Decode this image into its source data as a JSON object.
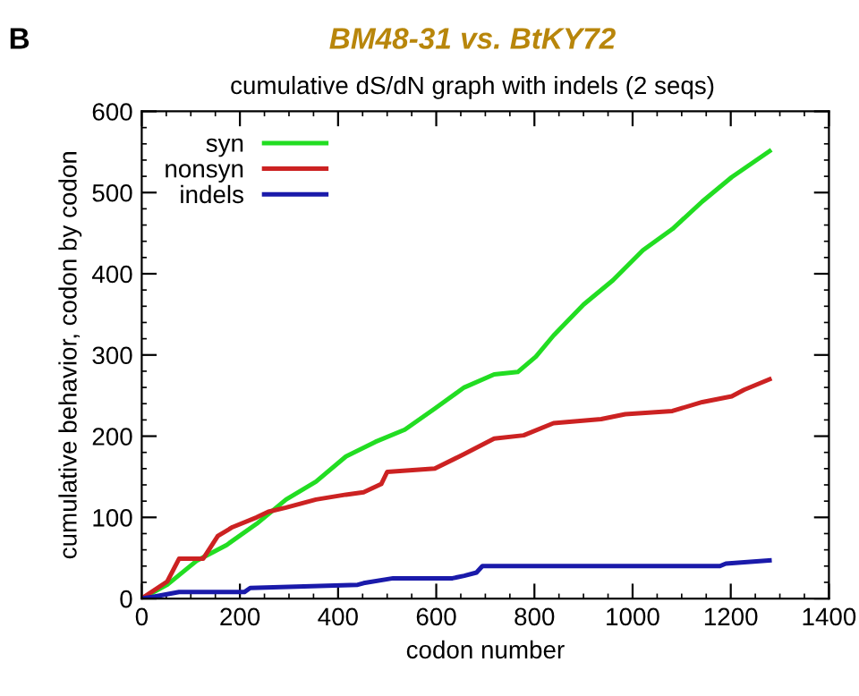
{
  "chart_data": {
    "type": "line",
    "title": "BM48-31 vs. BtKY72",
    "subtitle": "cumulative dS/dN graph with indels (2 seqs)",
    "xlabel": "codon number",
    "ylabel": "cumulative behavior, codon by codon",
    "annotations": [
      "B"
    ],
    "xlim": [
      0,
      1400
    ],
    "xticks": [
      0,
      200,
      400,
      600,
      800,
      1000,
      1200,
      1400
    ],
    "ylim": [
      0,
      600
    ],
    "yticks": [
      0,
      100,
      200,
      300,
      400,
      500,
      600
    ],
    "grid": false,
    "legend": "top left",
    "series": [
      {
        "name": "syn",
        "color": "#22dd22",
        "x": [
          0,
          52,
          113,
          173,
          234,
          294,
          355,
          416,
          476,
          536,
          597,
          657,
          718,
          766,
          803,
          839,
          900,
          960,
          1021,
          1081,
          1142,
          1202,
          1279
        ],
        "values": [
          0,
          17,
          47,
          66,
          92,
          122,
          144,
          175,
          193,
          208,
          234,
          260,
          276,
          279,
          298,
          324,
          362,
          392,
          429,
          455,
          489,
          519,
          551
        ]
      },
      {
        "name": "nonsyn",
        "color": "#cc2222",
        "x": [
          0,
          52,
          76,
          125,
          155,
          185,
          234,
          258,
          294,
          355,
          416,
          452,
          488,
          500,
          597,
          657,
          718,
          778,
          839,
          936,
          985,
          1081,
          1142,
          1202,
          1227,
          1279
        ],
        "values": [
          0,
          21,
          49,
          49,
          77,
          88,
          100,
          107,
          112,
          122,
          128,
          131,
          141,
          156,
          160,
          178,
          197,
          201,
          216,
          221,
          227,
          231,
          242,
          249,
          257,
          270
        ]
      },
      {
        "name": "indels",
        "color": "#1a1aaa",
        "x": [
          0,
          22,
          76,
          209,
          221,
          440,
          452,
          512,
          633,
          657,
          682,
          694,
          1178,
          1190,
          1279
        ],
        "values": [
          0,
          2,
          8,
          8,
          13,
          17,
          19,
          25,
          25,
          28,
          32,
          40,
          40,
          43,
          47
        ]
      }
    ]
  }
}
